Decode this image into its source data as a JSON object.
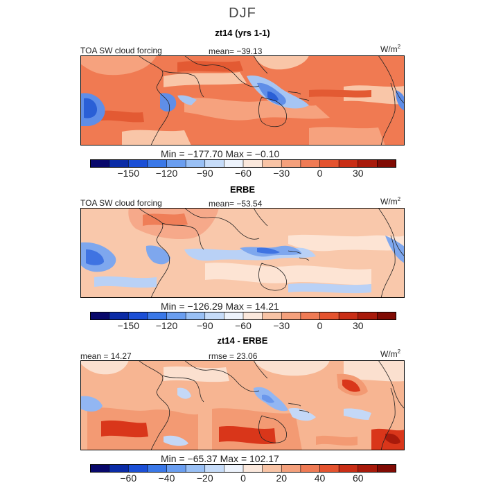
{
  "title": "DJF",
  "units_base": "W/m",
  "units_exp": "2",
  "panels": [
    {
      "title": "zt14 (yrs 1-1)",
      "corner_label": "TOA SW cloud forcing",
      "stat_label": "mean= −39.13",
      "minmax": "Min = −177.70 Max =   −0.10",
      "colorbar_ticks": [
        "−150",
        "−120",
        "−90",
        "−60",
        "−30",
        "0",
        "30"
      ]
    },
    {
      "title": "ERBE",
      "corner_label": "TOA SW cloud forcing",
      "stat_label": "mean= −53.54",
      "minmax": "Min = −126.29 Max =  14.21",
      "colorbar_ticks": [
        "−150",
        "−120",
        "−90",
        "−60",
        "−30",
        "0",
        "30"
      ]
    },
    {
      "title": "zt14 - ERBE",
      "corner_label": "mean =  14.27",
      "stat_label": "rmse =  23.06",
      "minmax": "Min = −65.37 Max = 102.17",
      "colorbar_ticks": [
        "−60",
        "−40",
        "−20",
        "0",
        "20",
        "40",
        "60"
      ]
    }
  ],
  "colorbar_colors": [
    "#08086b",
    "#0a2ba6",
    "#1b4fd6",
    "#3a78e8",
    "#6a9ef0",
    "#99c0f5",
    "#c6dcf9",
    "#edf3fc",
    "#fbe8dc",
    "#f8c3a5",
    "#f4a07c",
    "#ef7b55",
    "#e4532f",
    "#c92e16",
    "#a81a0b",
    "#800b04"
  ],
  "map_palettes": {
    "p1": {
      "base": "#f07a52",
      "light": "#f6a27e",
      "pale": "#f9c6a8",
      "blue": "#5f8ee8",
      "deep": "#2a5fd6",
      "lightblue": "#a6c5f3",
      "dark": "#e35a33"
    },
    "p2": {
      "base": "#f9c8ab",
      "light": "#f6a98a",
      "pale": "#fde4d4",
      "blue": "#7ea7ee",
      "deep": "#3f73e2",
      "lightblue": "#b9d1f6",
      "dark": "#ef7e58"
    },
    "p3": {
      "base": "#f7b592",
      "light": "#f39a73",
      "pale": "#fbe0cf",
      "blue": "#92b6f2",
      "deep": "#6a97ec",
      "lightblue": "#c4d8f7",
      "dark": "#d9361a"
    }
  }
}
